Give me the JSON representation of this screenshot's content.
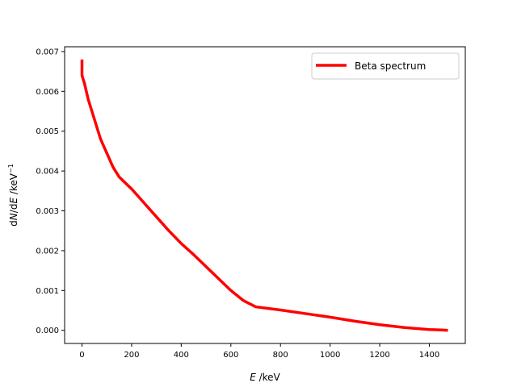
{
  "chart_data": {
    "type": "line",
    "title": "",
    "xlabel_italic": "E",
    "xlabel_unit": " /keV",
    "ylabel_d1": "d",
    "ylabel_N": "N",
    "ylabel_d2": "/d",
    "ylabel_E": "E",
    "ylabel_unit": " /keV",
    "ylabel_exp": "−1",
    "xlim": [
      -70,
      1545
    ],
    "ylim": [
      -0.00033,
      0.00712
    ],
    "xticks": [
      0,
      200,
      400,
      600,
      800,
      1000,
      1200,
      1400
    ],
    "xtick_labels": [
      "0",
      "200",
      "400",
      "600",
      "800",
      "1000",
      "1200",
      "1400"
    ],
    "yticks": [
      0.0,
      0.001,
      0.002,
      0.003,
      0.004,
      0.005,
      0.006,
      0.007
    ],
    "ytick_labels": [
      "0.000",
      "0.001",
      "0.002",
      "0.003",
      "0.004",
      "0.005",
      "0.006",
      "0.007"
    ],
    "grid": false,
    "legend_position": "top-right",
    "series": [
      {
        "name": "Beta spectrum",
        "color": "#ff0000",
        "x": [
          0,
          0,
          5,
          10,
          25,
          50,
          75,
          100,
          125,
          150,
          175,
          200,
          250,
          300,
          350,
          400,
          450,
          500,
          550,
          600,
          650,
          700,
          800,
          900,
          1000,
          1100,
          1200,
          1300,
          1400,
          1450,
          1475
        ],
        "y": [
          0.0068,
          0.0064,
          0.0063,
          0.0062,
          0.0058,
          0.0053,
          0.0048,
          0.00445,
          0.0041,
          0.00385,
          0.0037,
          0.00355,
          0.0032,
          0.00285,
          0.0025,
          0.00218,
          0.0019,
          0.0016,
          0.0013,
          0.001,
          0.00075,
          0.00059,
          0.00051,
          0.00042,
          0.00033,
          0.00023,
          0.00014,
          7e-05,
          2e-05,
          1e-05,
          0.0
        ]
      }
    ]
  }
}
